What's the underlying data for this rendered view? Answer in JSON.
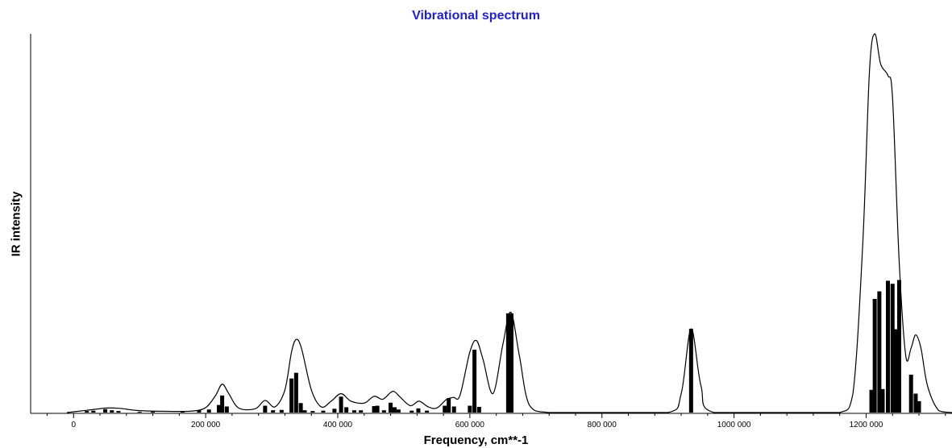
{
  "chart_data": {
    "type": "bar",
    "title": "Vibrational spectrum",
    "xlabel": "Frequency, cm**-1",
    "ylabel": "IR intensity",
    "xlim": [
      -65000,
      1330000
    ],
    "ylim": [
      0,
      1.0
    ],
    "x_ticks": [
      0,
      200000,
      400000,
      600000,
      800000,
      1000000,
      1200000
    ],
    "x_tick_labels": [
      "0",
      "200 000",
      "400 000",
      "600 000",
      "800 000",
      "1000 000",
      "1200 000"
    ],
    "grid": false,
    "legend": "none",
    "bar_color": "#000000",
    "line_color": "#000000",
    "series": [
      {
        "kind": "bars",
        "x": [
          20000,
          30000,
          48000,
          58000,
          68000,
          100000,
          120000,
          165000,
          190000,
          205000,
          220000,
          225000,
          232000,
          290000,
          302000,
          315000,
          330000,
          337000,
          344000,
          350000,
          362000,
          378000,
          395000,
          405000,
          413000,
          425000,
          435000,
          455000,
          460000,
          470000,
          480000,
          486000,
          492000,
          512000,
          522000,
          535000,
          562000,
          568000,
          576000,
          600000,
          607000,
          614000,
          658000,
          663000,
          935000,
          1208000,
          1213000,
          1220000,
          1225000,
          1233000,
          1240000,
          1245000,
          1250000,
          1268000,
          1275000,
          1280000
        ],
        "values": [
          0.004,
          0.005,
          0.009,
          0.006,
          0.004,
          0.002,
          0.002,
          0.004,
          0.006,
          0.008,
          0.02,
          0.045,
          0.016,
          0.018,
          0.006,
          0.007,
          0.09,
          0.105,
          0.025,
          0.006,
          0.004,
          0.005,
          0.01,
          0.042,
          0.014,
          0.006,
          0.006,
          0.017,
          0.018,
          0.006,
          0.026,
          0.014,
          0.008,
          0.005,
          0.011,
          0.005,
          0.018,
          0.038,
          0.016,
          0.018,
          0.166,
          0.015,
          0.262,
          0.262,
          0.221,
          0.06,
          0.3,
          0.32,
          0.062,
          0.348,
          0.34,
          0.22,
          0.35,
          0.1,
          0.05,
          0.03
        ],
        "label": ""
      },
      {
        "kind": "line",
        "x": [
          -10000,
          20000,
          50000,
          70000,
          100000,
          150000,
          180000,
          200000,
          215000,
          225000,
          235000,
          250000,
          275000,
          290000,
          305000,
          320000,
          330000,
          337000,
          345000,
          360000,
          375000,
          390000,
          405000,
          420000,
          440000,
          455000,
          468000,
          480000,
          486000,
          495000,
          510000,
          523000,
          537000,
          550000,
          565000,
          575000,
          585000,
          600000,
          610000,
          620000,
          635000,
          650000,
          662000,
          675000,
          690000,
          720000,
          800000,
          900000,
          920000,
          935000,
          950000,
          970000,
          1100000,
          1160000,
          1180000,
          1195000,
          1205000,
          1213000,
          1222000,
          1233000,
          1240000,
          1250000,
          1260000,
          1268000,
          1275000,
          1283000,
          1293000,
          1310000,
          1330000
        ],
        "values": [
          0.0,
          0.006,
          0.012,
          0.011,
          0.005,
          0.003,
          0.004,
          0.013,
          0.045,
          0.075,
          0.05,
          0.012,
          0.01,
          0.032,
          0.015,
          0.06,
          0.16,
          0.193,
          0.17,
          0.06,
          0.015,
          0.03,
          0.05,
          0.03,
          0.025,
          0.043,
          0.035,
          0.053,
          0.055,
          0.04,
          0.018,
          0.03,
          0.015,
          0.012,
          0.035,
          0.04,
          0.045,
          0.16,
          0.19,
          0.14,
          0.05,
          0.18,
          0.265,
          0.15,
          0.02,
          0.0,
          0.0,
          0.0,
          0.05,
          0.221,
          0.07,
          0.0,
          0.0,
          0.0,
          0.05,
          0.45,
          0.9,
          1.0,
          0.92,
          0.89,
          0.83,
          0.4,
          0.15,
          0.17,
          0.205,
          0.17,
          0.07,
          0.005,
          0.0
        ],
        "label": ""
      }
    ]
  }
}
